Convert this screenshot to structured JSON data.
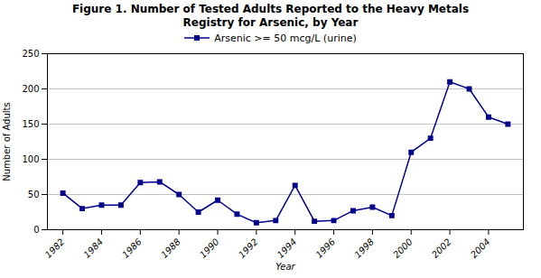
{
  "chart_data": {
    "type": "line",
    "title": "Figure 1. Number of Tested Adults Reported to the Heavy Metals\nRegistry for Arsenic, by Year",
    "x_label": "Year",
    "y_label": "Number of Adults",
    "x": [
      1982,
      1983,
      1984,
      1985,
      1986,
      1987,
      1988,
      1989,
      1990,
      1991,
      1992,
      1993,
      1994,
      1995,
      1996,
      1997,
      1998,
      1999,
      2000,
      2001,
      2002,
      2003,
      2004,
      2005
    ],
    "series": [
      {
        "name": "Arsenic >= 50 mcg/L (urine)",
        "color": "#00008B",
        "marker": "square",
        "line_style": "solid",
        "values": [
          52,
          30,
          35,
          35,
          67,
          68,
          50,
          25,
          42,
          22,
          10,
          13,
          63,
          12,
          13,
          27,
          32,
          20,
          110,
          130,
          210,
          200,
          160,
          150
        ]
      }
    ],
    "xlim": [
      1981.2,
      2005.8
    ],
    "xticks": [
      1982,
      1984,
      1986,
      1988,
      1990,
      1992,
      1994,
      1996,
      1998,
      2000,
      2002,
      2004
    ],
    "ylim": [
      0,
      250
    ],
    "yticks": [
      0,
      50,
      100,
      150,
      200,
      250
    ],
    "grid": true,
    "legend": "top"
  }
}
